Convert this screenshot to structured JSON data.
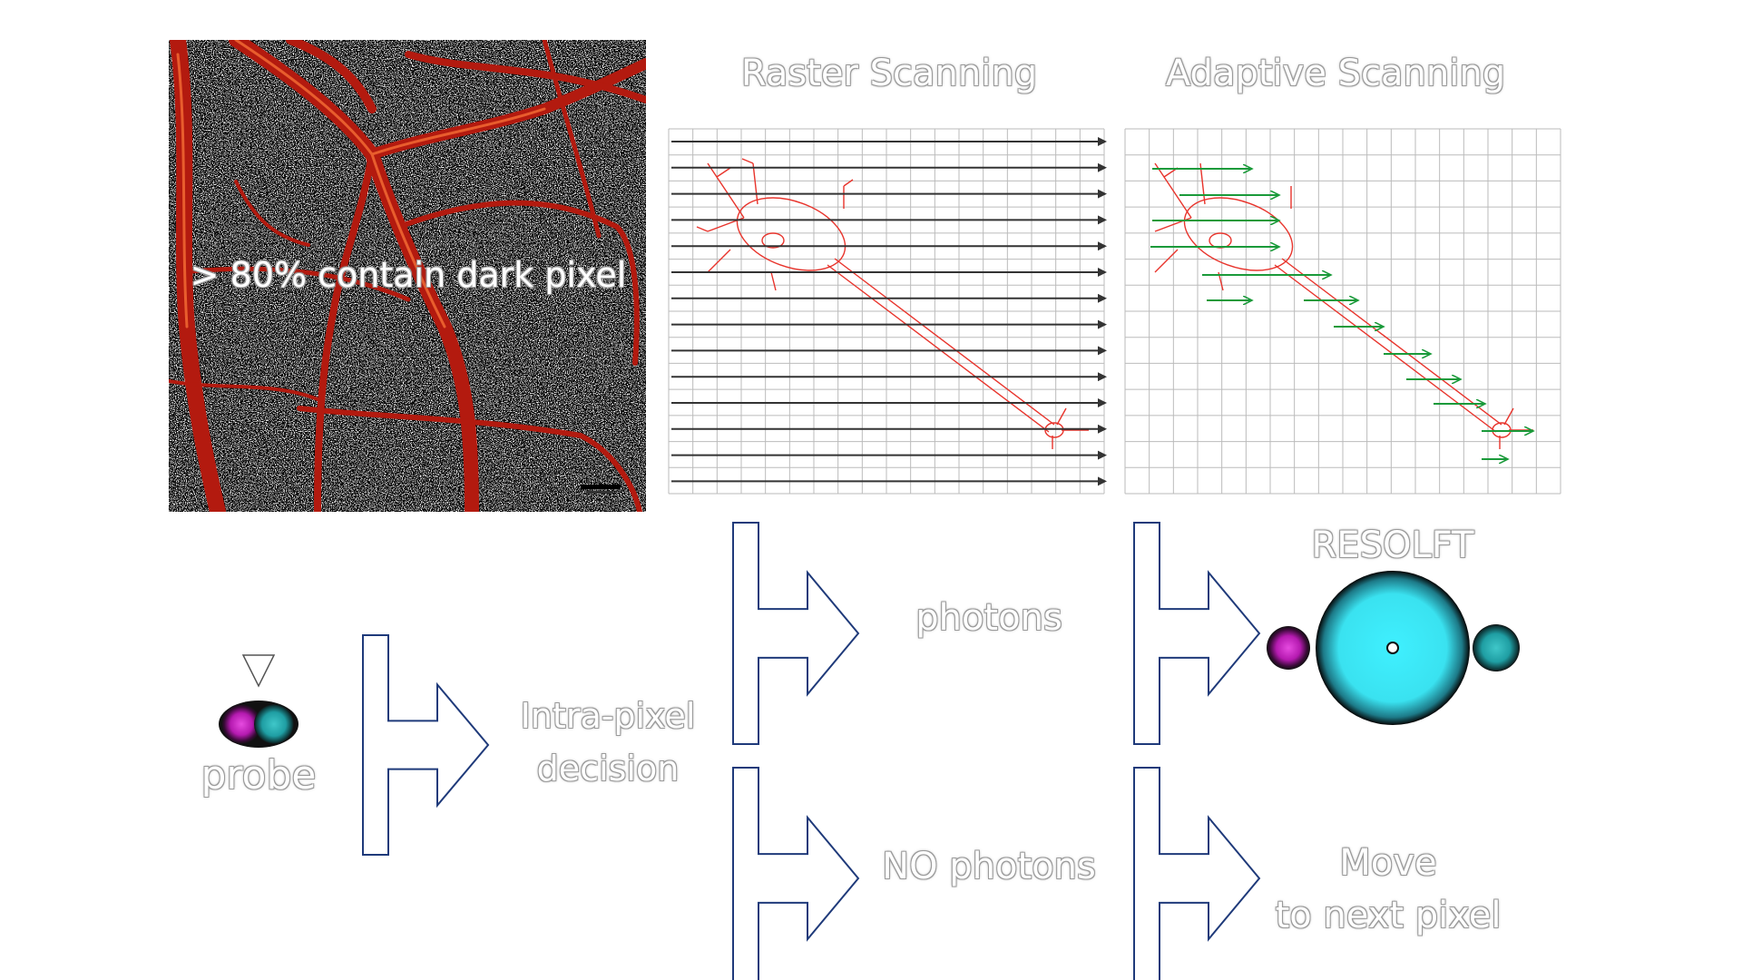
{
  "panels": {
    "raster_title": "Raster Scanning",
    "adaptive_title": "Adaptive Scanning",
    "image_overlay": "> 80% contain dark pixel"
  },
  "flow": {
    "probe_label": "probe",
    "decision_label_line1": "Intra-pixel",
    "decision_label_line2": "decision",
    "photons_label": "photons",
    "no_photons_label": "NO photons",
    "resolft_label": "RESOLFT",
    "move_label_line1": "Move",
    "move_label_line2": "to next pixel"
  },
  "colors": {
    "neuron": "#e8342c",
    "raster_arrow": "#333333",
    "adaptive_arrow": "#1a9a3a",
    "grid": "#bbbbbb",
    "flow_arrow": "#1f3a7a",
    "cyan": "#38e6f2",
    "magenta": "#c21fb5",
    "teal": "#2aa5a8",
    "tissue": "#b31a0f"
  },
  "icons": {
    "probe": "probe-icon",
    "resolft": "resolft-spot-icon",
    "triangle": "down-triangle-icon"
  }
}
